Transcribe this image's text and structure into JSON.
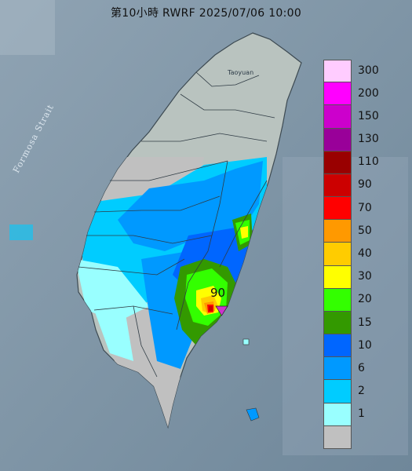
{
  "title": "第10小時  RWRF 2025/07/06 10:00",
  "map": {
    "strait_label": "Formosa Strait",
    "place_label": "Taoyuan",
    "max_value_label": "90",
    "max_marker_icon": "triangle-marker-icon"
  },
  "legend": {
    "items": [
      {
        "label": "300",
        "color": "#ffccff"
      },
      {
        "label": "200",
        "color": "#ff00ff"
      },
      {
        "label": "150",
        "color": "#cc00cc"
      },
      {
        "label": "130",
        "color": "#990099"
      },
      {
        "label": "110",
        "color": "#990000"
      },
      {
        "label": "90",
        "color": "#cc0000"
      },
      {
        "label": "70",
        "color": "#ff0000"
      },
      {
        "label": "50",
        "color": "#ff9900"
      },
      {
        "label": "40",
        "color": "#ffcc00"
      },
      {
        "label": "30",
        "color": "#ffff00"
      },
      {
        "label": "20",
        "color": "#33ff00"
      },
      {
        "label": "15",
        "color": "#339900"
      },
      {
        "label": "10",
        "color": "#0066ff"
      },
      {
        "label": "6",
        "color": "#0099ff"
      },
      {
        "label": "2",
        "color": "#00ccff"
      },
      {
        "label": "1",
        "color": "#99ffff"
      },
      {
        "label": "",
        "color": "#c0c0c0"
      }
    ]
  }
}
